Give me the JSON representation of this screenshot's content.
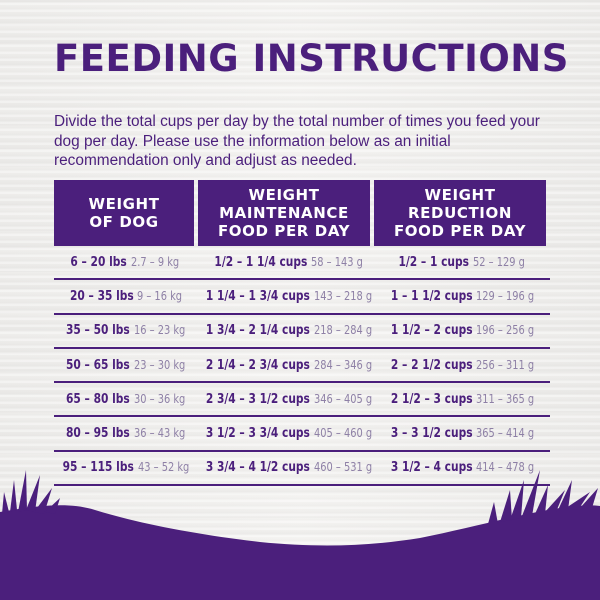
{
  "title": "FEEDING INSTRUCTIONS",
  "intro": "Divide the total cups per day by the total number of times you feed your dog per day. Please use the information below as an initial recommendation only and adjust as needed.",
  "colors": {
    "purple": "#4b1f7c",
    "muted": "#8e80a6",
    "background": "#f1f0ee"
  },
  "table": {
    "headers": [
      "WEIGHT\nOF DOG",
      "WEIGHT\nMAINTENANCE\nFOOD PER DAY",
      "WEIGHT\nREDUCTION\nFOOD PER DAY"
    ],
    "rows": [
      {
        "lbs": "6 – 20 lbs",
        "kg": "2.7 – 9 kg",
        "maint_cups": "1/2 – 1 1/4 cups",
        "maint_g": "58 – 143 g",
        "red_cups": "1/2 – 1 cups",
        "red_g": "52 – 129 g"
      },
      {
        "lbs": "20 – 35 lbs",
        "kg": "9 – 16 kg",
        "maint_cups": "1 1/4 – 1 3/4 cups",
        "maint_g": "143 – 218 g",
        "red_cups": "1 – 1 1/2 cups",
        "red_g": "129 – 196 g"
      },
      {
        "lbs": "35 – 50 lbs",
        "kg": "16 – 23 kg",
        "maint_cups": "1 3/4 – 2 1/4 cups",
        "maint_g": "218 – 284 g",
        "red_cups": "1 1/2 – 2 cups",
        "red_g": "196 – 256 g"
      },
      {
        "lbs": "50 – 65 lbs",
        "kg": "23 – 30 kg",
        "maint_cups": "2 1/4 – 2 3/4 cups",
        "maint_g": "284 – 346 g",
        "red_cups": "2 – 2 1/2 cups",
        "red_g": "256 – 311 g"
      },
      {
        "lbs": "65 – 80 lbs",
        "kg": "30 – 36 kg",
        "maint_cups": "2 3/4 – 3 1/2 cups",
        "maint_g": "346 – 405 g",
        "red_cups": "2 1/2 – 3 cups",
        "red_g": "311 – 365 g"
      },
      {
        "lbs": "80 – 95 lbs",
        "kg": "36 – 43 kg",
        "maint_cups": "3 1/2 – 3 3/4 cups",
        "maint_g": "405 – 460 g",
        "red_cups": "3 – 3 1/2 cups",
        "red_g": "365 – 414 g"
      },
      {
        "lbs": "95 – 115 lbs",
        "kg": "43 – 52 kg",
        "maint_cups": "3 3/4 – 4 1/2 cups",
        "maint_g": "460 – 531 g",
        "red_cups": "3 1/2 – 4 cups",
        "red_g": "414 – 478 g"
      }
    ]
  }
}
